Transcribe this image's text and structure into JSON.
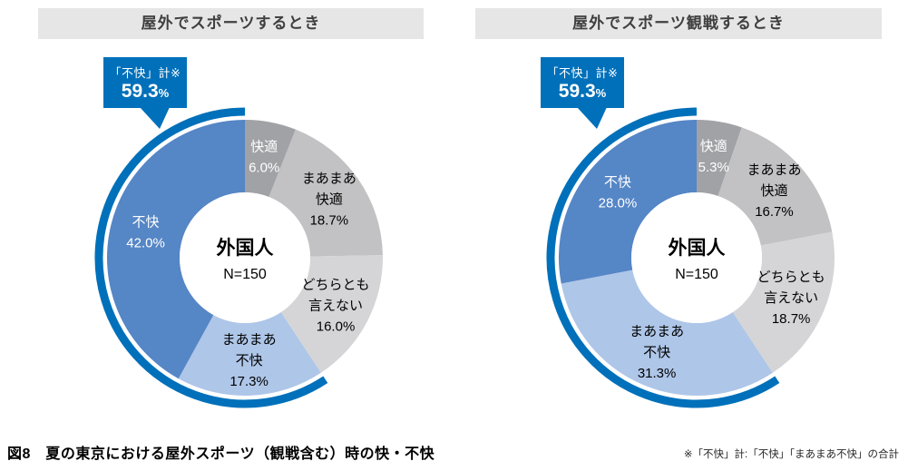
{
  "colors": {
    "accent_blue": "#0070ba",
    "title_bar_bg": "#e6e6e6",
    "title_text": "#3f3f3f",
    "fukai_blue": "#5586c6",
    "maamaa_fukai_blue": "#aec6e8",
    "dochira_gray": "#d5d5d7",
    "maamaa_kaiteki_gray": "#c2c2c4",
    "kaiteki_gray": "#a1a2a6"
  },
  "caption": "図8　夏の東京における屋外スポーツ（観戦含む）時の快・不快",
  "footnote": "※「不快」計:「不快」「まあまあ不快」の合計",
  "chart_data": [
    {
      "type": "pie",
      "subtype": "donut",
      "title": "屋外でスポーツするとき",
      "center_label": "外国人",
      "center_sublabel": "N=150",
      "callout": {
        "label": "「不快」計※",
        "value": "59.3",
        "unit": "%"
      },
      "highlight_arc": {
        "from_segment": 3,
        "total_pct": 59.3,
        "note": "covers まあまあ不快 + 不快"
      },
      "categories": [
        "快適",
        "まあまあ快適",
        "どちらとも言えない",
        "まあまあ不快",
        "不快"
      ],
      "values": [
        6.0,
        18.7,
        16.0,
        17.3,
        42.0
      ],
      "segments": [
        {
          "label_lines": [
            "快適"
          ],
          "value": 6.0,
          "display": "6.0%",
          "color": "#a1a2a6",
          "text_color": "#ffffff"
        },
        {
          "label_lines": [
            "まあまあ",
            "快適"
          ],
          "value": 18.7,
          "display": "18.7%",
          "color": "#c2c2c4",
          "text_color": "#000000"
        },
        {
          "label_lines": [
            "どちらとも",
            "言えない"
          ],
          "value": 16.0,
          "display": "16.0%",
          "color": "#d5d5d7",
          "text_color": "#000000"
        },
        {
          "label_lines": [
            "まあまあ",
            "不快"
          ],
          "value": 17.3,
          "display": "17.3%",
          "color": "#aec6e8",
          "text_color": "#000000"
        },
        {
          "label_lines": [
            "不快"
          ],
          "value": 42.0,
          "display": "42.0%",
          "color": "#5586c6",
          "text_color": "#ffffff"
        }
      ]
    },
    {
      "type": "pie",
      "subtype": "donut",
      "title": "屋外でスポーツ観戦するとき",
      "center_label": "外国人",
      "center_sublabel": "N=150",
      "callout": {
        "label": "「不快」計※",
        "value": "59.3",
        "unit": "%"
      },
      "highlight_arc": {
        "from_segment": 3,
        "total_pct": 59.3,
        "note": "covers まあまあ不快 + 不快"
      },
      "categories": [
        "快適",
        "まあまあ快適",
        "どちらとも言えない",
        "まあまあ不快",
        "不快"
      ],
      "values": [
        5.3,
        16.7,
        18.7,
        31.3,
        28.0
      ],
      "segments": [
        {
          "label_lines": [
            "快適"
          ],
          "value": 5.3,
          "display": "5.3%",
          "color": "#a1a2a6",
          "text_color": "#ffffff"
        },
        {
          "label_lines": [
            "まあまあ",
            "快適"
          ],
          "value": 16.7,
          "display": "16.7%",
          "color": "#c2c2c4",
          "text_color": "#000000"
        },
        {
          "label_lines": [
            "どちらとも",
            "言えない"
          ],
          "value": 18.7,
          "display": "18.7%",
          "color": "#d5d5d7",
          "text_color": "#000000"
        },
        {
          "label_lines": [
            "まあまあ",
            "不快"
          ],
          "value": 31.3,
          "display": "31.3%",
          "color": "#aec6e8",
          "text_color": "#000000"
        },
        {
          "label_lines": [
            "不快"
          ],
          "value": 28.0,
          "display": "28.0%",
          "color": "#5586c6",
          "text_color": "#ffffff"
        }
      ]
    }
  ]
}
